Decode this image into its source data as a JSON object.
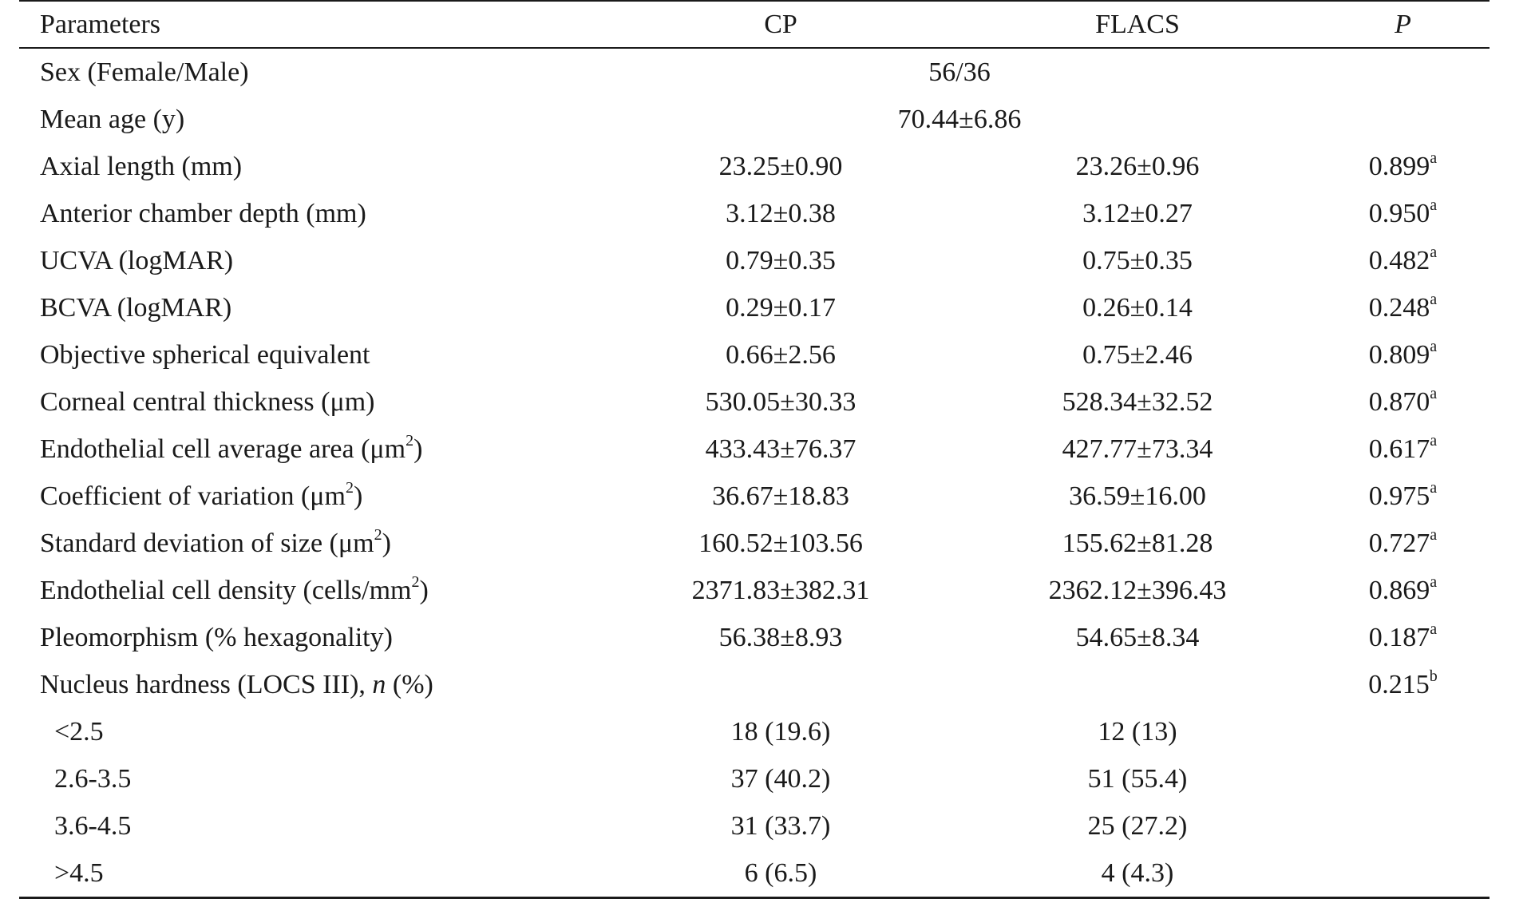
{
  "table": {
    "headers": {
      "parameters": "Parameters",
      "cp": "CP",
      "flacs": "FLACS",
      "p": "P"
    },
    "sex": {
      "label": "Sex (Female/Male)",
      "value": "56/36"
    },
    "age": {
      "label": "Mean age (y)",
      "value": "70.44±6.86"
    },
    "rows": [
      {
        "label": "Axial length (mm)",
        "cp": "23.25±0.90",
        "flacs": "23.26±0.96",
        "p": "0.899",
        "sup": "a"
      },
      {
        "label": "Anterior chamber depth (mm)",
        "cp": "3.12±0.38",
        "flacs": "3.12±0.27",
        "p": "0.950",
        "sup": "a"
      },
      {
        "label": "UCVA (logMAR)",
        "cp": "0.79±0.35",
        "flacs": "0.75±0.35",
        "p": "0.482",
        "sup": "a"
      },
      {
        "label": "BCVA (logMAR)",
        "cp": "0.29±0.17",
        "flacs": "0.26±0.14",
        "p": "0.248",
        "sup": "a"
      },
      {
        "label": "Objective spherical equivalent",
        "cp": "0.66±2.56",
        "flacs": "0.75±2.46",
        "p": "0.809",
        "sup": "a"
      },
      {
        "label": "Corneal central thickness (μm)",
        "cp": "530.05±30.33",
        "flacs": "528.34±32.52",
        "p": "0.870",
        "sup": "a"
      },
      {
        "label": "Endothelial cell average area (μm",
        "label_sup": "2",
        "label_end": ")",
        "cp": "433.43±76.37",
        "flacs": "427.77±73.34",
        "p": "0.617",
        "sup": "a"
      },
      {
        "label": "Coefficient of variation (μm",
        "label_sup": "2",
        "label_end": ")",
        "cp": "36.67±18.83",
        "flacs": "36.59±16.00",
        "p": "0.975",
        "sup": "a"
      },
      {
        "label": "Standard deviation of size (μm",
        "label_sup": "2",
        "label_end": ")",
        "cp": "160.52±103.56",
        "flacs": "155.62±81.28",
        "p": "0.727",
        "sup": "a"
      },
      {
        "label": "Endothelial cell density (cells/mm",
        "label_sup": "2",
        "label_end": ")",
        "cp": "2371.83±382.31",
        "flacs": "2362.12±396.43",
        "p": "0.869",
        "sup": "a"
      },
      {
        "label": "Pleomorphism (% hexagonality)",
        "cp": "56.38±8.93",
        "flacs": "54.65±8.34",
        "p": "0.187",
        "sup": "a"
      }
    ],
    "nucleus": {
      "label_prefix": "Nucleus hardness (LOCS III), ",
      "label_italic": "n",
      "label_suffix": " (%)",
      "p": "0.215",
      "sup": "b"
    },
    "nucleus_rows": [
      {
        "label": "<2.5",
        "cp": "18 (19.6)",
        "flacs": "12 (13)"
      },
      {
        "label": "2.6-3.5",
        "cp": "37 (40.2)",
        "flacs": "51 (55.4)"
      },
      {
        "label": "3.6-4.5",
        "cp": "31 (33.7)",
        "flacs": "25 (27.2)"
      },
      {
        "label": ">4.5",
        "cp": "6 (6.5)",
        "flacs": "4 (4.3)"
      }
    ]
  }
}
